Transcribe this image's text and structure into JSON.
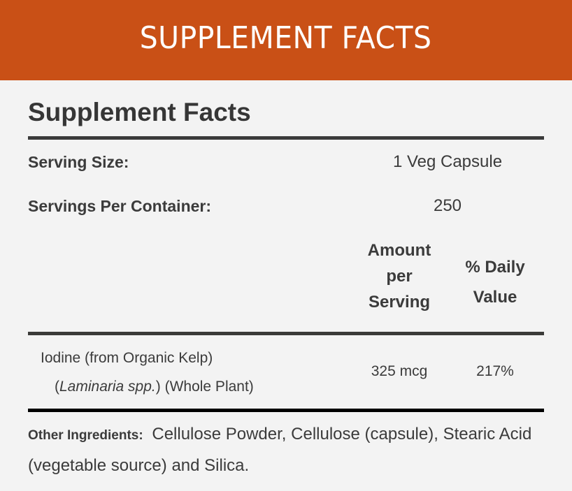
{
  "banner": {
    "title": "SUPPLEMENT FACTS",
    "bg_color": "#c95016"
  },
  "panel": {
    "title": "Supplement Facts",
    "serving_size": {
      "label": "Serving Size:",
      "value": "1 Veg Capsule"
    },
    "servings_per_container": {
      "label": "Servings Per Container:",
      "value": "250"
    },
    "columns": {
      "amount": [
        "Amount",
        "per",
        "Serving"
      ],
      "daily_value": [
        "% Daily",
        "Value"
      ]
    },
    "nutrients": [
      {
        "name_line1": "Iodine (from Organic Kelp)",
        "name_line2_italic": "Laminaria spp.",
        "name_line2_rest": " (Whole Plant)",
        "amount": "325 mcg",
        "daily_value": "217%"
      }
    ],
    "other_ingredients": {
      "label": "Other Ingredients:",
      "text": "Cellulose Powder, Cellulose (capsule), Stearic Acid (vegetable source) and Silica."
    }
  }
}
